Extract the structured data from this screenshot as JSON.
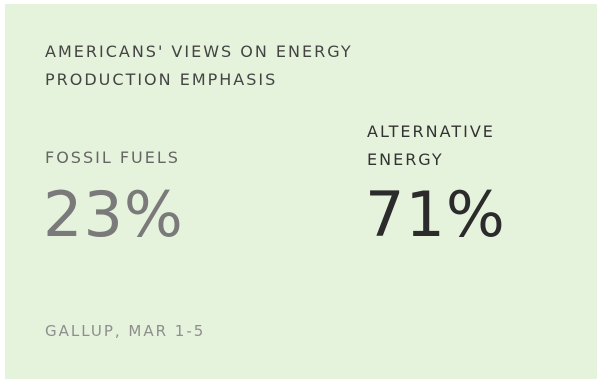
{
  "title": {
    "line1": "AMERICANS' VIEWS ON ENERGY",
    "line2": "PRODUCTION EMPHASIS"
  },
  "stats": [
    {
      "label_line1": "FOSSIL FUELS",
      "label_line2": "",
      "value": "23%"
    },
    {
      "label_line1": "ALTERNATIVE",
      "label_line2": "ENERGY",
      "value": "71%"
    }
  ],
  "source": "GALLUP, MAR 1-5",
  "colors": {
    "background": "#e6f3dc",
    "fossil_value": "#7a7a7a",
    "alternative_value": "#2b2b2b"
  }
}
